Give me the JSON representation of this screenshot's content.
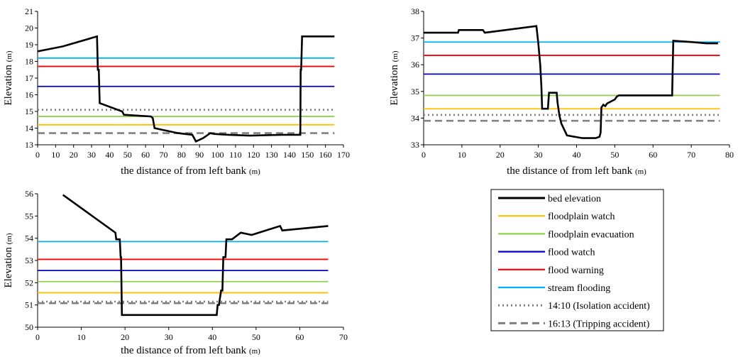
{
  "legend": {
    "entries": [
      {
        "label": "bed elevation",
        "color": "#000000",
        "style": "solid",
        "key": "bed"
      },
      {
        "label": "floodplain watch",
        "color": "#FFC000",
        "style": "solid",
        "key": "fpw"
      },
      {
        "label": "floodplain evacuation",
        "color": "#92D050",
        "style": "solid",
        "key": "fpe"
      },
      {
        "label": "flood watch",
        "color": "#0000CC",
        "style": "solid",
        "key": "fw"
      },
      {
        "label": "flood warning",
        "color": "#FF0000",
        "style": "solid",
        "key": "fwarn"
      },
      {
        "label": "stream flooding",
        "color": "#00B0F0",
        "style": "solid",
        "key": "sf"
      },
      {
        "label": "14:10 (Isolation accident)",
        "color": "#808080",
        "style": "dotted",
        "key": "iso"
      },
      {
        "label": "16:13 (Tripping accident)",
        "color": "#808080",
        "style": "dashed",
        "key": "trip"
      }
    ]
  },
  "chart_data": [
    {
      "type": "line",
      "xlabel_main": "the distance of from left bank",
      "xlabel_unit": "(m)",
      "ylabel_main": "Elevation",
      "ylabel_unit": "(m)",
      "xlim": [
        0,
        170
      ],
      "ylim": [
        13,
        21
      ],
      "xticks": [
        0,
        10,
        20,
        30,
        40,
        50,
        60,
        70,
        80,
        90,
        100,
        110,
        120,
        130,
        140,
        150,
        160,
        170
      ],
      "yticks": [
        13,
        14,
        15,
        16,
        17,
        18,
        19,
        20,
        21
      ],
      "bed": {
        "x": [
          0,
          14,
          33,
          33.5,
          34,
          34.5,
          47,
          48,
          63,
          64,
          65,
          78,
          86,
          88,
          92,
          96,
          98,
          106,
          118,
          136,
          146,
          146.2,
          146.5,
          147,
          165
        ],
        "y": [
          18.6,
          18.9,
          19.5,
          17.5,
          17.5,
          15.5,
          15.0,
          14.8,
          14.7,
          14.6,
          14.0,
          13.7,
          13.6,
          13.2,
          13.4,
          13.7,
          13.65,
          13.6,
          13.55,
          13.6,
          13.6,
          17.5,
          17.5,
          19.5,
          19.5
        ]
      },
      "levels": {
        "fpw": 14.2,
        "fpe": 14.7,
        "fw": 16.5,
        "fwarn": 17.7,
        "sf": 18.2,
        "iso": 15.1,
        "trip": 13.7
      },
      "level_xrange": [
        0,
        165
      ]
    },
    {
      "type": "line",
      "xlabel_main": "the distance of from left bank",
      "xlabel_unit": "(m)",
      "ylabel_main": "Elevation",
      "ylabel_unit": "(m)",
      "xlim": [
        0,
        80
      ],
      "ylim": [
        33,
        38
      ],
      "xticks": [
        0,
        10,
        20,
        30,
        40,
        50,
        60,
        70,
        80
      ],
      "yticks": [
        33,
        34,
        35,
        36,
        37,
        38
      ],
      "bed": {
        "x": [
          0,
          9,
          9.2,
          15.5,
          16,
          29.5,
          30,
          30.5,
          30.8,
          31,
          32.5,
          32.8,
          34.8,
          35,
          35.5,
          36,
          37.5,
          41.5,
          45,
          46,
          46.3,
          46.5,
          47,
          47.5,
          48,
          50,
          50.5,
          51,
          65,
          65.3,
          70,
          74,
          77
        ],
        "y": [
          37.2,
          37.2,
          37.3,
          37.3,
          37.2,
          37.45,
          36.8,
          36.0,
          35.2,
          34.35,
          34.35,
          34.95,
          34.95,
          34.6,
          34.1,
          33.8,
          33.35,
          33.25,
          33.25,
          33.3,
          33.45,
          34.4,
          34.5,
          34.45,
          34.55,
          34.7,
          34.8,
          34.85,
          34.85,
          36.9,
          36.85,
          36.8,
          36.8
        ]
      },
      "levels": {
        "fpw": 34.35,
        "fpe": 34.85,
        "fw": 35.65,
        "fwarn": 36.35,
        "sf": 36.85,
        "iso": 34.12,
        "trip": 33.9
      },
      "level_xrange": [
        0,
        77.5
      ]
    },
    {
      "type": "line",
      "xlabel_main": "the distance of from left bank",
      "xlabel_unit": "(m)",
      "ylabel_main": "Elevation",
      "ylabel_unit": "(m)",
      "xlim": [
        0,
        70
      ],
      "ylim": [
        50,
        56
      ],
      "xticks": [
        0,
        10,
        20,
        30,
        40,
        50,
        60,
        70
      ],
      "yticks": [
        50,
        51,
        52,
        53,
        54,
        55,
        56
      ],
      "bed": {
        "x": [
          5.8,
          17.8,
          18,
          18.8,
          19,
          19.1,
          19.3,
          41,
          41.2,
          41.5,
          42,
          42.3,
          42.5,
          43,
          43.2,
          44.5,
          46.5,
          49,
          55.5,
          56,
          66.5
        ],
        "y": [
          55.95,
          54.25,
          53.95,
          53.95,
          53.15,
          53.15,
          50.55,
          50.55,
          51.0,
          51.0,
          51.65,
          51.65,
          53.15,
          53.15,
          53.95,
          53.95,
          54.25,
          54.15,
          54.55,
          54.35,
          54.55
        ]
      },
      "levels": {
        "fpw": 51.55,
        "fpe": 52.05,
        "fw": 52.55,
        "fwarn": 53.05,
        "sf": 53.85,
        "iso": 51.15,
        "trip": 51.08
      },
      "level_xrange": [
        0,
        66.5
      ]
    }
  ]
}
